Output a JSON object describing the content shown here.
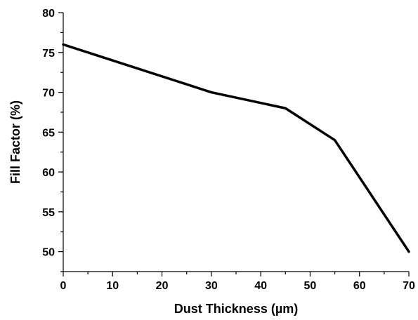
{
  "chart_data": {
    "type": "line",
    "title": "",
    "xlabel": "Dust Thickness (µm)",
    "ylabel": "Fill Factor (%)",
    "xlim": [
      0,
      70
    ],
    "ylim": [
      47.5,
      80
    ],
    "x_ticks": [
      0,
      10,
      20,
      30,
      40,
      50,
      60,
      70
    ],
    "y_ticks": [
      50,
      55,
      60,
      65,
      70,
      75,
      80
    ],
    "x_tick_labels": [
      "0",
      "10",
      "20",
      "30",
      "40",
      "50",
      "60",
      "70"
    ],
    "y_tick_labels": [
      "50",
      "55",
      "60",
      "65",
      "70",
      "75",
      "80"
    ],
    "grid": false,
    "legend": "none",
    "line_color": "#000000",
    "series": [
      {
        "x": [
          0,
          30,
          45,
          55,
          70
        ],
        "values": [
          76,
          70,
          68,
          64,
          50
        ]
      }
    ]
  }
}
